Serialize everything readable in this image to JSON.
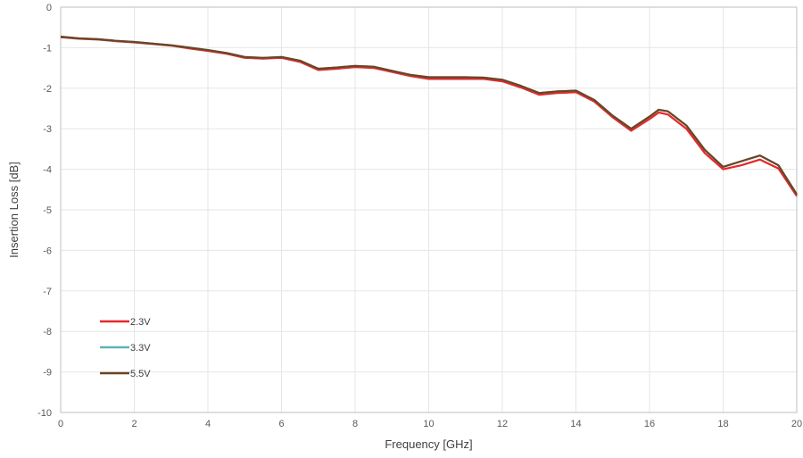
{
  "chart_data": {
    "type": "line",
    "title": "",
    "xlabel": "Frequency [GHz]",
    "ylabel": "Insertion Loss [dB]",
    "xlim": [
      0,
      20
    ],
    "ylim": [
      -10,
      0
    ],
    "xticks": [
      0,
      2,
      4,
      6,
      8,
      10,
      12,
      14,
      16,
      18,
      20
    ],
    "yticks": [
      0,
      -1,
      -2,
      -3,
      -4,
      -5,
      -6,
      -7,
      -8,
      -9,
      -10
    ],
    "grid": true,
    "legend_position": "bottom-left",
    "x": [
      0,
      0.5,
      1,
      1.5,
      2,
      2.5,
      3,
      3.5,
      4,
      4.5,
      5,
      5.5,
      6,
      6.5,
      7,
      7.5,
      8,
      8.5,
      9,
      9.5,
      10,
      10.5,
      11,
      11.5,
      12,
      12.5,
      13,
      13.5,
      14,
      14.5,
      15,
      15.5,
      16,
      16.25,
      16.5,
      17,
      17.5,
      18,
      18.5,
      19,
      19.5,
      20
    ],
    "series": [
      {
        "name": "2.3V",
        "color": "#e8262a",
        "values": [
          -0.74,
          -0.78,
          -0.8,
          -0.84,
          -0.87,
          -0.91,
          -0.95,
          -1.02,
          -1.08,
          -1.15,
          -1.25,
          -1.27,
          -1.25,
          -1.35,
          -1.55,
          -1.52,
          -1.48,
          -1.5,
          -1.6,
          -1.7,
          -1.77,
          -1.77,
          -1.77,
          -1.77,
          -1.83,
          -1.98,
          -2.16,
          -2.12,
          -2.1,
          -2.33,
          -2.72,
          -3.05,
          -2.76,
          -2.6,
          -2.65,
          -3.0,
          -3.6,
          -4.0,
          -3.9,
          -3.76,
          -3.98,
          -4.66
        ]
      },
      {
        "name": "3.3V",
        "color": "#5bb5b8",
        "values": [
          -0.73,
          -0.77,
          -0.79,
          -0.83,
          -0.86,
          -0.9,
          -0.94,
          -1.0,
          -1.06,
          -1.13,
          -1.23,
          -1.25,
          -1.23,
          -1.32,
          -1.52,
          -1.49,
          -1.45,
          -1.47,
          -1.57,
          -1.67,
          -1.73,
          -1.73,
          -1.73,
          -1.74,
          -1.79,
          -1.94,
          -2.12,
          -2.08,
          -2.06,
          -2.29,
          -2.68,
          -3.0,
          -2.7,
          -2.53,
          -2.57,
          -2.92,
          -3.52,
          -3.94,
          -3.8,
          -3.66,
          -3.9,
          -4.62
        ]
      },
      {
        "name": "5.5V",
        "color": "#6b4423",
        "values": [
          -0.73,
          -0.77,
          -0.79,
          -0.83,
          -0.86,
          -0.9,
          -0.94,
          -1.0,
          -1.06,
          -1.13,
          -1.23,
          -1.25,
          -1.23,
          -1.32,
          -1.52,
          -1.49,
          -1.45,
          -1.47,
          -1.57,
          -1.67,
          -1.73,
          -1.73,
          -1.73,
          -1.74,
          -1.79,
          -1.94,
          -2.12,
          -2.08,
          -2.06,
          -2.29,
          -2.68,
          -3.0,
          -2.7,
          -2.53,
          -2.57,
          -2.92,
          -3.52,
          -3.94,
          -3.8,
          -3.66,
          -3.9,
          -4.62
        ]
      }
    ]
  }
}
